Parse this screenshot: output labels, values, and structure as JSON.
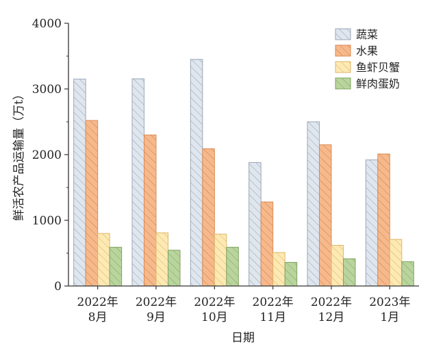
{
  "chart_data": {
    "type": "bar",
    "categories": [
      [
        "2022年",
        "8月"
      ],
      [
        "2022年",
        "9月"
      ],
      [
        "2022年",
        "10月"
      ],
      [
        "2022年",
        "11月"
      ],
      [
        "2022年",
        "12月"
      ],
      [
        "2023年",
        "1月"
      ]
    ],
    "series": [
      {
        "name": "蔬菜",
        "values": [
          3150,
          3155,
          3450,
          1880,
          2500,
          1920
        ],
        "fill": "#dfe6ee",
        "stroke": "#9aa6b6",
        "hatch": "#8f9cad"
      },
      {
        "name": "水果",
        "values": [
          2520,
          2300,
          2090,
          1280,
          2150,
          2010
        ],
        "fill": "#f6b98c",
        "stroke": "#d98a55",
        "hatch": "#d07a45"
      },
      {
        "name": "鱼虾贝蟹",
        "values": [
          800,
          810,
          790,
          510,
          620,
          710
        ],
        "fill": "#fde9b4",
        "stroke": "#dcb768",
        "hatch": "#d9ae55"
      },
      {
        "name": "鲜肉蛋奶",
        "values": [
          590,
          545,
          590,
          360,
          415,
          370
        ],
        "fill": "#b9d49d",
        "stroke": "#7fa360",
        "hatch": "#7fa360"
      }
    ],
    "xlabel": "日期",
    "ylabel": "鲜活农产品运输量（万t）",
    "ylim": [
      0,
      4000
    ],
    "yticks": [
      0,
      1000,
      2000,
      3000,
      4000
    ],
    "legend_position": "top-right",
    "grid": false
  }
}
